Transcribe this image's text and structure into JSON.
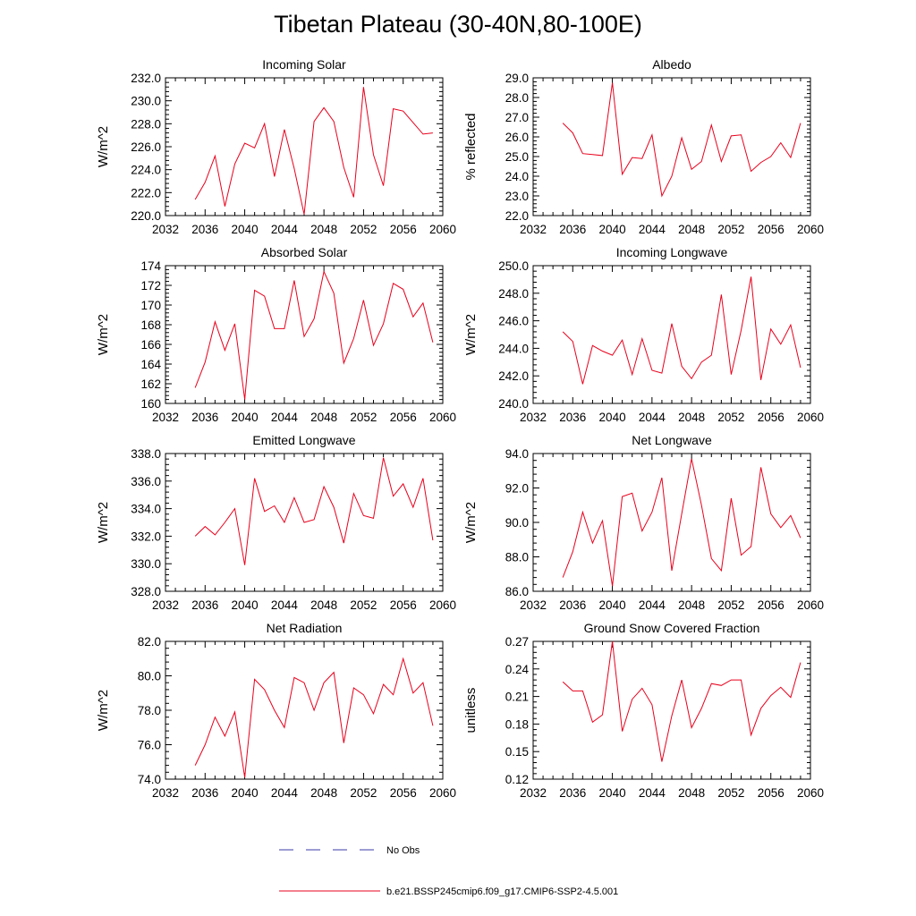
{
  "title": "Tibetan Plateau (30-40N,80-100E)",
  "legend": [
    {
      "label": "No Obs",
      "color": "#3a3aaa",
      "dash": true
    },
    {
      "label": "b.e21.BSSP245cmip6.f09_g17.CMIP6-SSP2-4.5.001",
      "color": "#e8001c",
      "dash": false
    }
  ],
  "chart_data": [
    {
      "type": "line",
      "title": "Incoming Solar",
      "ylabel": "W/m^2",
      "xlim": [
        2032,
        2060
      ],
      "ylim": [
        220.0,
        232.0
      ],
      "xticks": [
        2032,
        2036,
        2040,
        2044,
        2048,
        2052,
        2056,
        2060
      ],
      "yticks": [
        "220.0",
        "222.0",
        "224.0",
        "226.0",
        "228.0",
        "230.0",
        "232.0"
      ],
      "series": [
        {
          "color": "#e8001c",
          "x": [
            2035,
            2036,
            2037,
            2038,
            2039,
            2040,
            2041,
            2042,
            2043,
            2044,
            2045,
            2046,
            2047,
            2048,
            2049,
            2050,
            2051,
            2052,
            2053,
            2054,
            2055,
            2056,
            2057,
            2058,
            2059
          ],
          "values": [
            221.4,
            222.9,
            225.2,
            220.8,
            224.5,
            226.3,
            225.9,
            228.0,
            223.4,
            227.5,
            224.1,
            220.1,
            228.2,
            229.4,
            228.2,
            224.2,
            221.6,
            231.2,
            225.3,
            222.6,
            229.3,
            229.1,
            228.1,
            227.1,
            227.2
          ]
        }
      ]
    },
    {
      "type": "line",
      "title": "Albedo",
      "ylabel": "% reflected",
      "xlim": [
        2032,
        2060
      ],
      "ylim": [
        22.0,
        29.0
      ],
      "xticks": [
        2032,
        2036,
        2040,
        2044,
        2048,
        2052,
        2056,
        2060
      ],
      "yticks": [
        "22.0",
        "23.0",
        "24.0",
        "25.0",
        "26.0",
        "27.0",
        "28.0",
        "29.0"
      ],
      "series": [
        {
          "color": "#e8001c",
          "x": [
            2035,
            2036,
            2037,
            2038,
            2039,
            2040,
            2041,
            2042,
            2043,
            2044,
            2045,
            2046,
            2047,
            2048,
            2049,
            2050,
            2051,
            2052,
            2053,
            2054,
            2055,
            2056,
            2057,
            2058,
            2059
          ],
          "values": [
            26.7,
            26.2,
            25.15,
            25.1,
            25.05,
            28.75,
            24.1,
            24.95,
            24.9,
            26.1,
            23.0,
            24.0,
            25.95,
            24.35,
            24.75,
            26.6,
            24.75,
            26.05,
            26.1,
            24.25,
            24.7,
            25.0,
            25.7,
            24.95,
            26.7
          ]
        }
      ]
    },
    {
      "type": "line",
      "title": "Absorbed Solar",
      "ylabel": "W/m^2",
      "xlim": [
        2032,
        2060
      ],
      "ylim": [
        160,
        174
      ],
      "xticks": [
        2032,
        2036,
        2040,
        2044,
        2048,
        2052,
        2056,
        2060
      ],
      "yticks": [
        "160",
        "162",
        "164",
        "166",
        "168",
        "170",
        "172",
        "174"
      ],
      "series": [
        {
          "color": "#e8001c",
          "x": [
            2035,
            2036,
            2037,
            2038,
            2039,
            2040,
            2041,
            2042,
            2043,
            2044,
            2045,
            2046,
            2047,
            2048,
            2049,
            2050,
            2051,
            2052,
            2053,
            2054,
            2055,
            2056,
            2057,
            2058,
            2059
          ],
          "values": [
            161.6,
            164.2,
            168.3,
            165.4,
            168.1,
            160.4,
            171.5,
            170.9,
            167.6,
            167.6,
            172.5,
            166.8,
            168.6,
            173.4,
            171.2,
            164.1,
            166.6,
            170.5,
            165.9,
            168.1,
            172.2,
            171.6,
            168.8,
            170.2,
            166.2
          ]
        }
      ]
    },
    {
      "type": "line",
      "title": "Incoming Longwave",
      "ylabel": "W/m^2",
      "xlim": [
        2032,
        2060
      ],
      "ylim": [
        240.0,
        250.0
      ],
      "xticks": [
        2032,
        2036,
        2040,
        2044,
        2048,
        2052,
        2056,
        2060
      ],
      "yticks": [
        "240.0",
        "242.0",
        "244.0",
        "246.0",
        "248.0",
        "250.0"
      ],
      "series": [
        {
          "color": "#e8001c",
          "x": [
            2035,
            2036,
            2037,
            2038,
            2039,
            2040,
            2041,
            2042,
            2043,
            2044,
            2045,
            2046,
            2047,
            2048,
            2049,
            2050,
            2051,
            2052,
            2053,
            2054,
            2055,
            2056,
            2057,
            2058,
            2059
          ],
          "values": [
            245.2,
            244.5,
            241.4,
            244.2,
            243.8,
            243.5,
            244.6,
            242.1,
            244.7,
            242.4,
            242.2,
            245.8,
            242.7,
            241.8,
            243.0,
            243.5,
            247.9,
            242.1,
            245.3,
            249.2,
            241.7,
            245.4,
            244.3,
            245.7,
            242.6
          ]
        }
      ]
    },
    {
      "type": "line",
      "title": "Emitted Longwave",
      "ylabel": "W/m^2",
      "xlim": [
        2032,
        2060
      ],
      "ylim": [
        328.0,
        338.0
      ],
      "xticks": [
        2032,
        2036,
        2040,
        2044,
        2048,
        2052,
        2056,
        2060
      ],
      "yticks": [
        "328.0",
        "330.0",
        "332.0",
        "334.0",
        "336.0",
        "338.0"
      ],
      "series": [
        {
          "color": "#e8001c",
          "x": [
            2035,
            2036,
            2037,
            2038,
            2039,
            2040,
            2041,
            2042,
            2043,
            2044,
            2045,
            2046,
            2047,
            2048,
            2049,
            2050,
            2051,
            2052,
            2053,
            2054,
            2055,
            2056,
            2057,
            2058,
            2059
          ],
          "values": [
            332.0,
            332.7,
            332.1,
            333.0,
            334.0,
            329.9,
            336.2,
            333.8,
            334.2,
            333.0,
            334.8,
            333.0,
            333.2,
            335.6,
            334.1,
            331.5,
            335.1,
            333.5,
            333.3,
            337.7,
            334.9,
            335.8,
            334.1,
            336.2,
            331.7
          ]
        }
      ]
    },
    {
      "type": "line",
      "title": "Net Longwave",
      "ylabel": "W/m^2",
      "xlim": [
        2032,
        2060
      ],
      "ylim": [
        86.0,
        94.0
      ],
      "xticks": [
        2032,
        2036,
        2040,
        2044,
        2048,
        2052,
        2056,
        2060
      ],
      "yticks": [
        "86.0",
        "88.0",
        "90.0",
        "92.0",
        "94.0"
      ],
      "series": [
        {
          "color": "#e8001c",
          "x": [
            2035,
            2036,
            2037,
            2038,
            2039,
            2040,
            2041,
            2042,
            2043,
            2044,
            2045,
            2046,
            2047,
            2048,
            2049,
            2050,
            2051,
            2052,
            2053,
            2054,
            2055,
            2056,
            2057,
            2058,
            2059
          ],
          "values": [
            86.8,
            88.3,
            90.6,
            88.8,
            90.1,
            86.3,
            91.5,
            91.7,
            89.5,
            90.6,
            92.6,
            87.2,
            90.5,
            93.7,
            91.0,
            87.9,
            87.2,
            91.4,
            88.1,
            88.6,
            93.2,
            90.5,
            89.7,
            90.4,
            89.1
          ]
        }
      ]
    },
    {
      "type": "line",
      "title": "Net Radiation",
      "ylabel": "W/m^2",
      "xlim": [
        2032,
        2060
      ],
      "ylim": [
        74.0,
        82.0
      ],
      "xticks": [
        2032,
        2036,
        2040,
        2044,
        2048,
        2052,
        2056,
        2060
      ],
      "yticks": [
        "74.0",
        "76.0",
        "78.0",
        "80.0",
        "82.0"
      ],
      "series": [
        {
          "color": "#e8001c",
          "x": [
            2035,
            2036,
            2037,
            2038,
            2039,
            2040,
            2041,
            2042,
            2043,
            2044,
            2045,
            2046,
            2047,
            2048,
            2049,
            2050,
            2051,
            2052,
            2053,
            2054,
            2055,
            2056,
            2057,
            2058,
            2059
          ],
          "values": [
            74.8,
            76.0,
            77.6,
            76.5,
            77.9,
            74.1,
            79.8,
            79.2,
            78.0,
            77.0,
            79.9,
            79.6,
            78.0,
            79.6,
            80.2,
            76.1,
            79.3,
            78.9,
            77.8,
            79.5,
            78.9,
            81.0,
            79.0,
            79.6,
            77.1
          ]
        }
      ]
    },
    {
      "type": "line",
      "title": "Ground Snow Covered Fraction",
      "ylabel": "unitless",
      "xlim": [
        2032,
        2060
      ],
      "ylim": [
        0.12,
        0.27
      ],
      "xticks": [
        2032,
        2036,
        2040,
        2044,
        2048,
        2052,
        2056,
        2060
      ],
      "yticks": [
        "0.12",
        "0.15",
        "0.18",
        "0.21",
        "0.24",
        "0.27"
      ],
      "series": [
        {
          "color": "#e8001c",
          "x": [
            2035,
            2036,
            2037,
            2038,
            2039,
            2040,
            2041,
            2042,
            2043,
            2044,
            2045,
            2046,
            2047,
            2048,
            2049,
            2050,
            2051,
            2052,
            2053,
            2054,
            2055,
            2056,
            2057,
            2058,
            2059
          ],
          "values": [
            0.226,
            0.216,
            0.216,
            0.182,
            0.19,
            0.27,
            0.172,
            0.207,
            0.219,
            0.201,
            0.139,
            0.189,
            0.228,
            0.176,
            0.197,
            0.224,
            0.222,
            0.228,
            0.228,
            0.168,
            0.197,
            0.211,
            0.22,
            0.209,
            0.247
          ]
        }
      ]
    }
  ]
}
